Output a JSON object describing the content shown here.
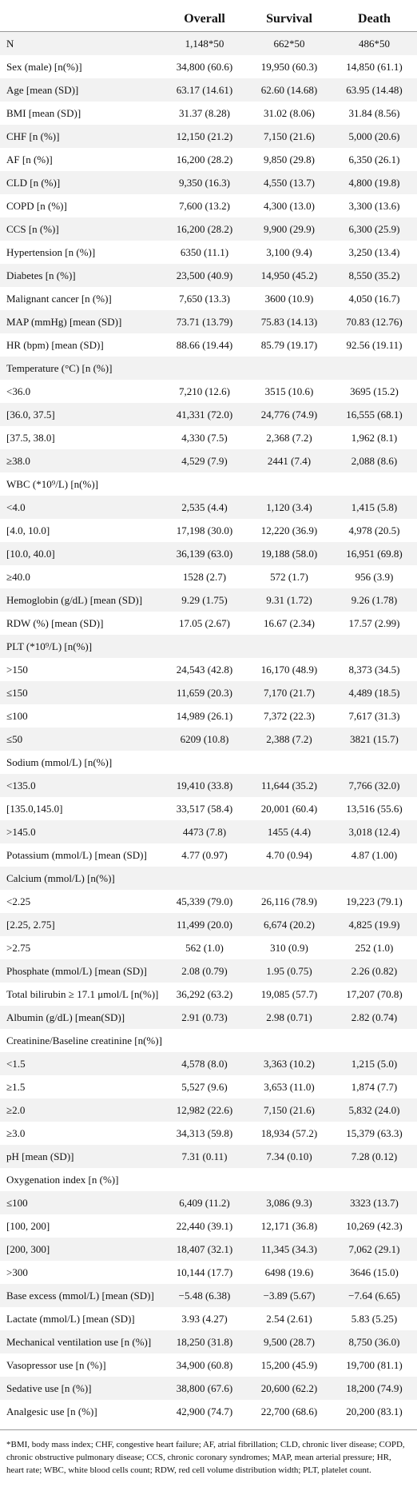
{
  "table": {
    "headers": [
      "Overall",
      "Survival",
      "Death"
    ],
    "rows": [
      [
        "N",
        "1,148*50",
        "662*50",
        "486*50"
      ],
      [
        "Sex (male) [n(%)]",
        "34,800 (60.6)",
        "19,950 (60.3)",
        "14,850 (61.1)"
      ],
      [
        "Age [mean (SD)]",
        "63.17 (14.61)",
        "62.60 (14.68)",
        "63.95 (14.48)"
      ],
      [
        "BMI [mean (SD)]",
        "31.37 (8.28)",
        "31.02 (8.06)",
        "31.84 (8.56)"
      ],
      [
        "CHF [n (%)]",
        "12,150 (21.2)",
        "7,150 (21.6)",
        "5,000 (20.6)"
      ],
      [
        "AF [n (%)]",
        "16,200 (28.2)",
        "9,850 (29.8)",
        "6,350 (26.1)"
      ],
      [
        "CLD [n (%)]",
        "9,350 (16.3)",
        "4,550 (13.7)",
        "4,800 (19.8)"
      ],
      [
        "COPD [n (%)]",
        "7,600 (13.2)",
        "4,300 (13.0)",
        "3,300 (13.6)"
      ],
      [
        "CCS [n (%)]",
        "16,200 (28.2)",
        "9,900 (29.9)",
        "6,300 (25.9)"
      ],
      [
        "Hypertension [n (%)]",
        "6350 (11.1)",
        "3,100 (9.4)",
        "3,250 (13.4)"
      ],
      [
        "Diabetes [n (%)]",
        "23,500 (40.9)",
        "14,950 (45.2)",
        "8,550 (35.2)"
      ],
      [
        "Malignant cancer [n (%)]",
        "7,650 (13.3)",
        "3600 (10.9)",
        "4,050 (16.7)"
      ],
      [
        "MAP (mmHg) [mean (SD)]",
        "73.71 (13.79)",
        "75.83 (14.13)",
        "70.83 (12.76)"
      ],
      [
        "HR (bpm) [mean (SD)]",
        "88.66 (19.44)",
        "85.79 (19.17)",
        "92.56 (19.11)"
      ],
      [
        "Temperature (°C) [n (%)]"
      ],
      [
        "<36.0",
        "7,210 (12.6)",
        "3515 (10.6)",
        "3695 (15.2)"
      ],
      [
        "[36.0, 37.5]",
        "41,331 (72.0)",
        "24,776 (74.9)",
        "16,555 (68.1)"
      ],
      [
        "[37.5, 38.0]",
        "4,330 (7.5)",
        "2,368 (7.2)",
        "1,962 (8.1)"
      ],
      [
        "≥38.0",
        "4,529 (7.9)",
        "2441 (7.4)",
        "2,088 (8.6)"
      ],
      [
        "WBC (*10⁹/L) [n(%)]"
      ],
      [
        "<4.0",
        "2,535 (4.4)",
        "1,120 (3.4)",
        "1,415 (5.8)"
      ],
      [
        "[4.0, 10.0]",
        "17,198 (30.0)",
        "12,220 (36.9)",
        "4,978 (20.5)"
      ],
      [
        "[10.0, 40.0]",
        "36,139 (63.0)",
        "19,188 (58.0)",
        "16,951 (69.8)"
      ],
      [
        "≥40.0",
        "1528 (2.7)",
        "572 (1.7)",
        "956 (3.9)"
      ],
      [
        "Hemoglobin (g/dL) [mean (SD)]",
        "9.29 (1.75)",
        "9.31 (1.72)",
        "9.26 (1.78)"
      ],
      [
        "RDW (%) [mean (SD)]",
        "17.05 (2.67)",
        "16.67 (2.34)",
        "17.57 (2.99)"
      ],
      [
        "PLT (*10⁹/L) [n(%)]"
      ],
      [
        ">150",
        "24,543 (42.8)",
        "16,170 (48.9)",
        "8,373 (34.5)"
      ],
      [
        "≤150",
        "11,659 (20.3)",
        "7,170 (21.7)",
        "4,489 (18.5)"
      ],
      [
        "≤100",
        "14,989 (26.1)",
        "7,372 (22.3)",
        "7,617 (31.3)"
      ],
      [
        "≤50",
        "6209 (10.8)",
        "2,388 (7.2)",
        "3821 (15.7)"
      ],
      [
        "Sodium (mmol/L) [n(%)]"
      ],
      [
        "<135.0",
        "19,410 (33.8)",
        "11,644 (35.2)",
        "7,766 (32.0)"
      ],
      [
        "[135.0,145.0]",
        "33,517 (58.4)",
        "20,001 (60.4)",
        "13,516 (55.6)"
      ],
      [
        ">145.0",
        "4473 (7.8)",
        "1455 (4.4)",
        "3,018 (12.4)"
      ],
      [
        "Potassium (mmol/L) [mean (SD)]",
        "4.77 (0.97)",
        "4.70 (0.94)",
        "4.87 (1.00)"
      ],
      [
        "Calcium (mmol/L) [n(%)]"
      ],
      [
        "<2.25",
        "45,339 (79.0)",
        "26,116 (78.9)",
        "19,223 (79.1)"
      ],
      [
        "[2.25, 2.75]",
        "11,499 (20.0)",
        "6,674 (20.2)",
        "4,825 (19.9)"
      ],
      [
        ">2.75",
        "562 (1.0)",
        "310 (0.9)",
        "252 (1.0)"
      ],
      [
        "Phosphate (mmol/L) [mean (SD)]",
        "2.08 (0.79)",
        "1.95 (0.75)",
        "2.26 (0.82)"
      ],
      [
        "Total bilirubin ≥ 17.1 μmol/L [n(%)]",
        "36,292 (63.2)",
        "19,085 (57.7)",
        "17,207 (70.8)"
      ],
      [
        "Albumin (g/dL) [mean(SD)]",
        "2.91 (0.73)",
        "2.98 (0.71)",
        "2.82 (0.74)"
      ],
      [
        "Creatinine/Baseline creatinine [n(%)]"
      ],
      [
        "<1.5",
        "4,578 (8.0)",
        "3,363 (10.2)",
        "1,215 (5.0)"
      ],
      [
        "≥1.5",
        "5,527 (9.6)",
        "3,653 (11.0)",
        "1,874 (7.7)"
      ],
      [
        "≥2.0",
        "12,982 (22.6)",
        "7,150 (21.6)",
        "5,832 (24.0)"
      ],
      [
        "≥3.0",
        "34,313 (59.8)",
        "18,934 (57.2)",
        "15,379 (63.3)"
      ],
      [
        "pH [mean (SD)]",
        "7.31 (0.11)",
        "7.34 (0.10)",
        "7.28 (0.12)"
      ],
      [
        "Oxygenation index [n (%)]"
      ],
      [
        "≤100",
        "6,409 (11.2)",
        "3,086 (9.3)",
        "3323 (13.7)"
      ],
      [
        "[100, 200]",
        "22,440 (39.1)",
        "12,171 (36.8)",
        "10,269 (42.3)"
      ],
      [
        "[200, 300]",
        "18,407 (32.1)",
        "11,345 (34.3)",
        "7,062 (29.1)"
      ],
      [
        ">300",
        "10,144 (17.7)",
        "6498 (19.6)",
        "3646 (15.0)"
      ],
      [
        "Base excess (mmol/L) [mean (SD)]",
        "−5.48 (6.38)",
        "−3.89 (5.67)",
        "−7.64 (6.65)"
      ],
      [
        "Lactate (mmol/L) [mean (SD)]",
        "3.93 (4.27)",
        "2.54 (2.61)",
        "5.83 (5.25)"
      ],
      [
        "Mechanical ventilation use [n (%)]",
        "18,250 (31.8)",
        "9,500 (28.7)",
        "8,750 (36.0)"
      ],
      [
        "Vasopressor use [n (%)]",
        "34,900 (60.8)",
        "15,200 (45.9)",
        "19,700 (81.1)"
      ],
      [
        "Sedative use [n (%)]",
        "38,800 (67.6)",
        "20,600 (62.2)",
        "18,200 (74.9)"
      ],
      [
        "Analgesic use [n (%)]",
        "42,900 (74.7)",
        "22,700 (68.6)",
        "20,200 (83.1)"
      ]
    ],
    "footnote": "*BMI, body mass index; CHF, congestive heart failure; AF, atrial fibrillation; CLD, chronic liver disease; COPD, chronic obstructive pulmonary disease; CCS, chronic coronary syndromes; MAP, mean arterial pressure; HR, heart rate; WBC, white blood cells count; RDW, red cell volume distribution width; PLT, platelet count."
  }
}
